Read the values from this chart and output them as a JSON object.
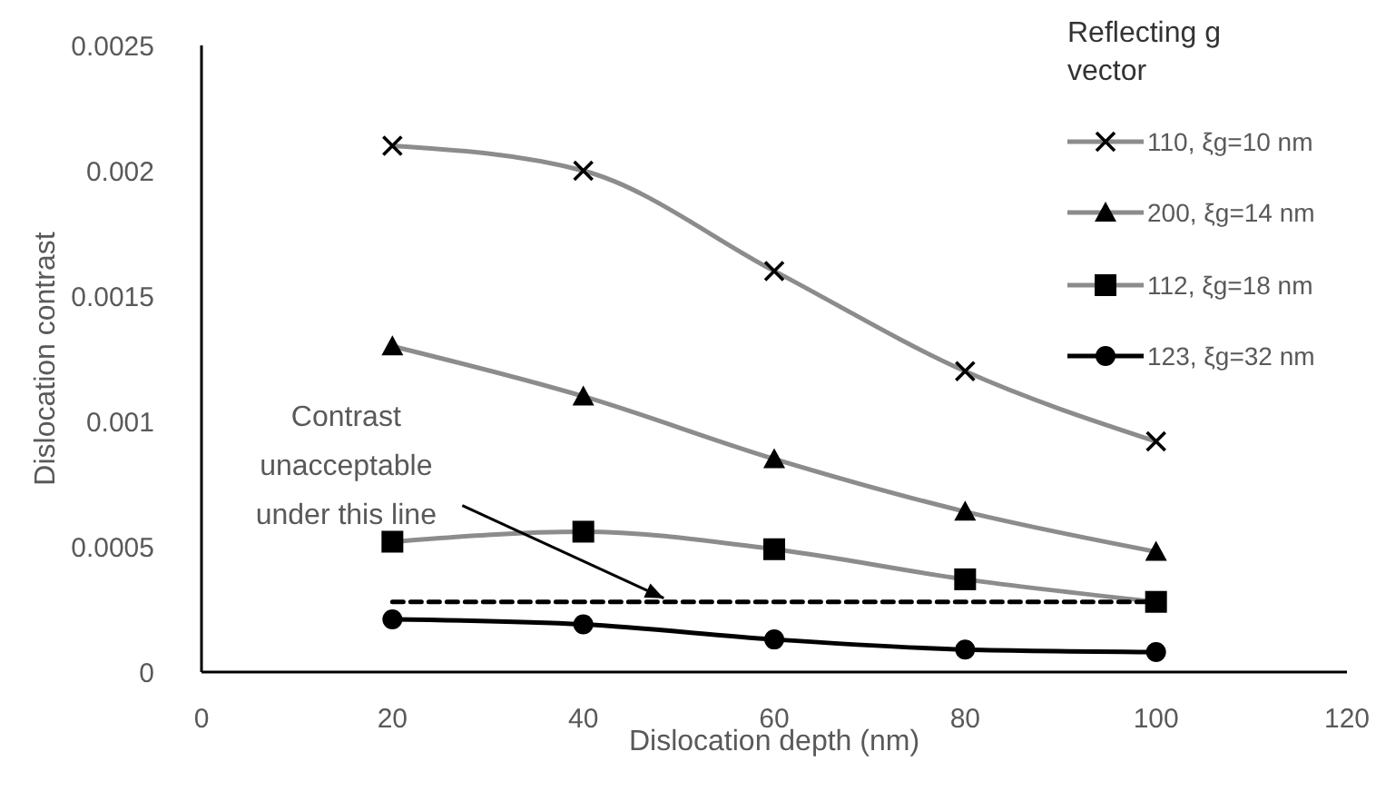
{
  "chart_data": {
    "type": "line",
    "xlabel": "Dislocation depth (nm)",
    "ylabel": "Dislocation contrast",
    "legend_title": "Reflecting g vector",
    "x": [
      20,
      40,
      60,
      80,
      100
    ],
    "series": [
      {
        "name": "110,  ξg=10 nm",
        "color": "#8c8c8c",
        "marker": "cross",
        "values": [
          0.0021,
          0.002,
          0.0016,
          0.0012,
          0.00092
        ]
      },
      {
        "name": "200, ξg=14 nm",
        "color": "#8c8c8c",
        "marker": "triangle",
        "values": [
          0.0013,
          0.0011,
          0.00085,
          0.00064,
          0.00048
        ]
      },
      {
        "name": "112, ξg=18 nm",
        "color": "#8c8c8c",
        "marker": "square",
        "values": [
          0.00052,
          0.00056,
          0.00049,
          0.00037,
          0.00028
        ]
      },
      {
        "name": "123, ξg=32 nm",
        "color": "#000000",
        "marker": "circle",
        "values": [
          0.00021,
          0.00019,
          0.00013,
          9e-05,
          8e-05
        ]
      },
      {
        "color": "#000000",
        "marker": "none",
        "line_style": "dashed",
        "values": [
          0.00028,
          0.00028,
          0.00028,
          0.00028,
          0.00028
        ]
      }
    ],
    "annotations": [
      {
        "text": "Contrast unacceptable under this line",
        "x": 49,
        "y": 0.00028
      }
    ],
    "xlim": [
      0,
      120
    ],
    "xticks": [
      0,
      20,
      40,
      60,
      80,
      100,
      120
    ],
    "ylim": [
      0,
      0.0025
    ],
    "yticks": [
      0,
      0.0005,
      0.001,
      0.0015,
      0.002,
      0.0025
    ],
    "grid": false,
    "legend": "top right"
  }
}
